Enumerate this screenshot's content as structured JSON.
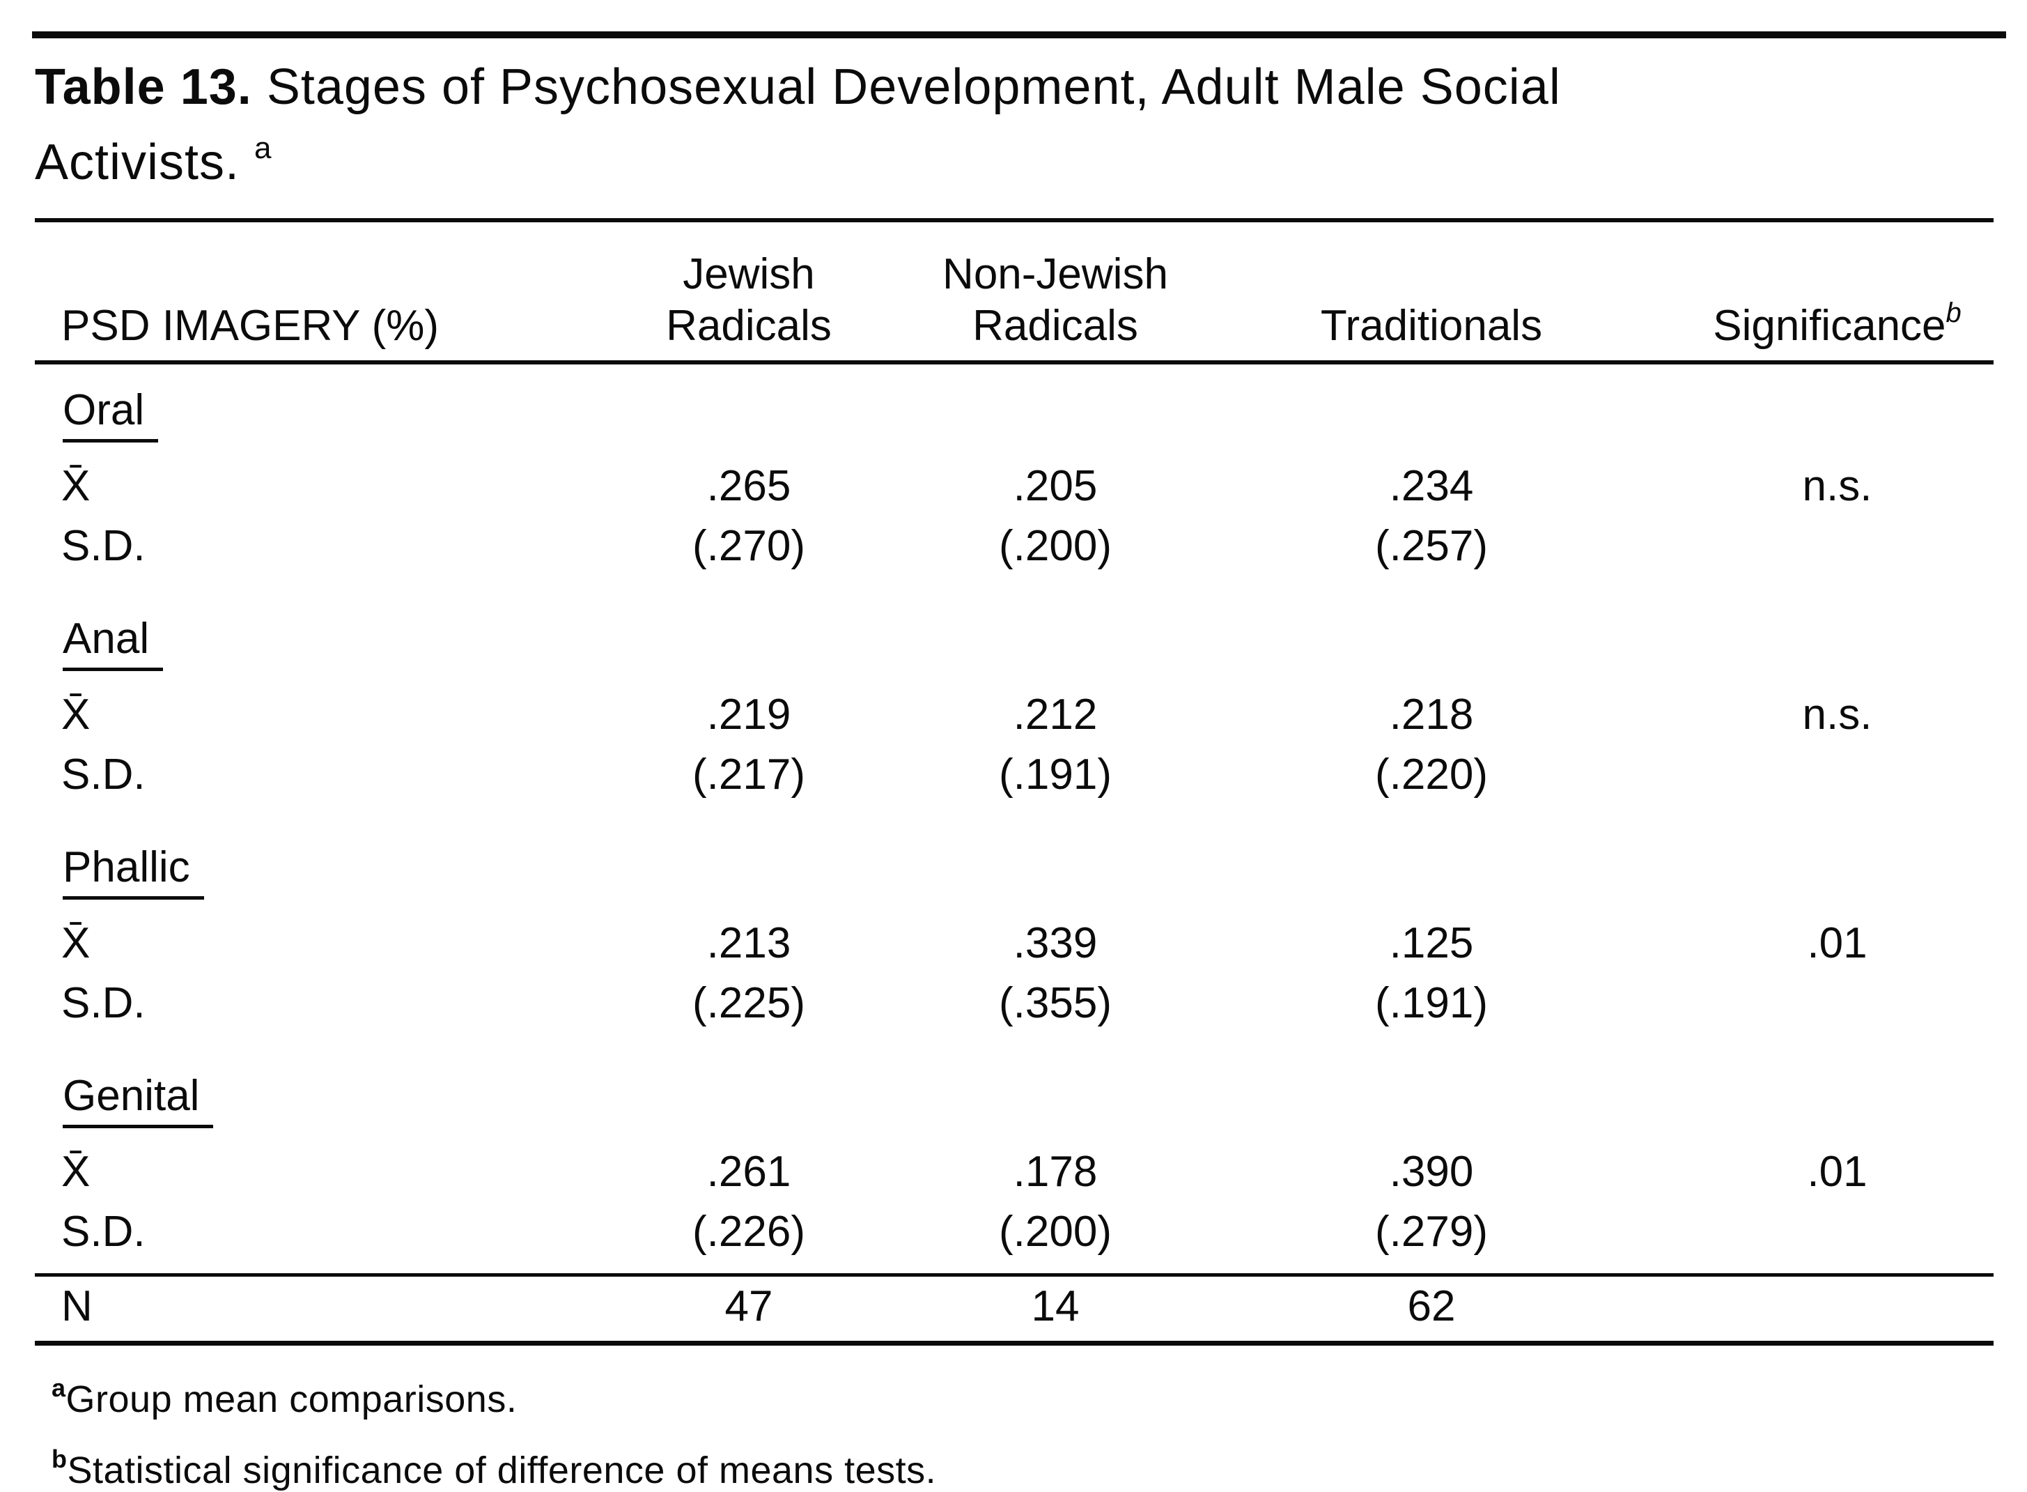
{
  "page": {
    "background_color": "#ffffff",
    "text_color": "#0b0b0b"
  },
  "title": {
    "prefix": "Table 13.",
    "rest": " Stages of Psychosexual Development, Adult Male Social Activists. ",
    "superscript": "a"
  },
  "table": {
    "header": {
      "col1": "PSD IMAGERY (%)",
      "col2_line1": "Jewish",
      "col2_line2": "Radicals",
      "col3_line1": "Non-Jewish",
      "col3_line2": "Radicals",
      "col4": "Traditionals",
      "col5": "Significance",
      "col5_superscript": "b"
    },
    "row_labels": {
      "mean": "X̄",
      "sd": "S.D."
    },
    "sections": [
      {
        "name": "Oral",
        "mean": [
          ".265",
          ".205",
          ".234"
        ],
        "significance": "n.s.",
        "sd": [
          "(.270)",
          "(.200)",
          "(.257)"
        ]
      },
      {
        "name": "Anal",
        "mean": [
          ".219",
          ".212",
          ".218"
        ],
        "significance": "n.s.",
        "sd": [
          "(.217)",
          "(.191)",
          "(.220)"
        ]
      },
      {
        "name": "Phallic",
        "mean": [
          ".213",
          ".339",
          ".125"
        ],
        "significance": ".01",
        "sd": [
          "(.225)",
          "(.355)",
          "(.191)"
        ]
      },
      {
        "name": "Genital",
        "mean": [
          ".261",
          ".178",
          ".390"
        ],
        "significance": ".01",
        "sd": [
          "(.226)",
          "(.200)",
          "(.279)"
        ]
      }
    ],
    "n_row": {
      "label": "N",
      "values": [
        "47",
        "14",
        "62"
      ],
      "significance": ""
    }
  },
  "footnotes": [
    {
      "marker": "a",
      "text": "Group mean comparisons."
    },
    {
      "marker": "b",
      "text": "Statistical significance of difference of means tests."
    }
  ]
}
